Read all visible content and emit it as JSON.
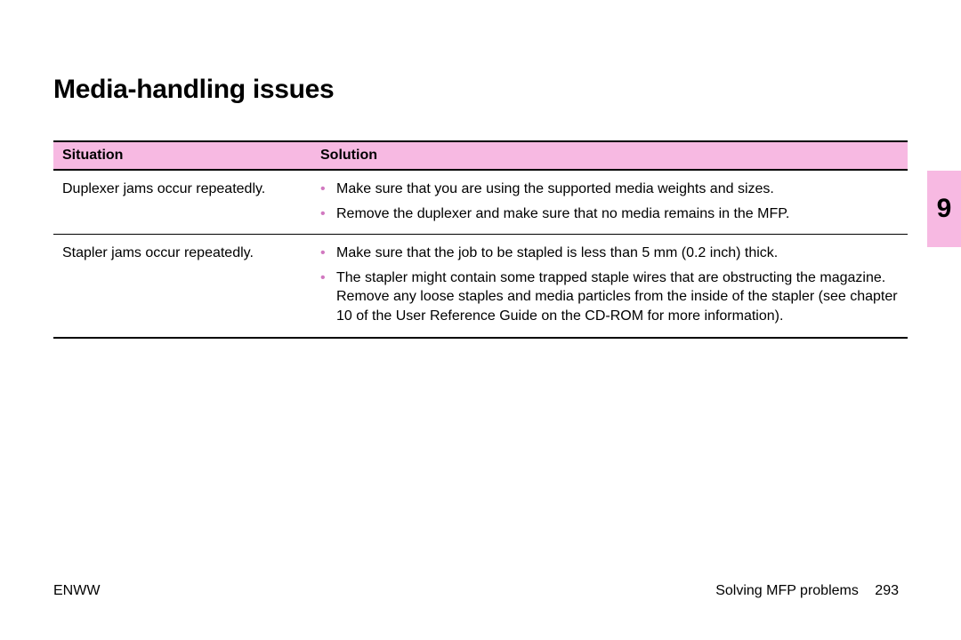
{
  "title": "Media-handling issues",
  "table": {
    "header": {
      "situation": "Situation",
      "solution": "Solution"
    },
    "header_bg": "#f7b9e2",
    "bullet_color": "#d178c0",
    "rows": [
      {
        "situation": "Duplexer jams occur repeatedly.",
        "solutions": [
          "Make sure that you are using the supported media weights and sizes.",
          "Remove the duplexer and make sure that no media remains in the MFP."
        ]
      },
      {
        "situation": "Stapler jams occur repeatedly.",
        "solutions": [
          "Make sure that the job to be stapled is less than 5 mm (0.2 inch) thick.",
          "The stapler might contain some trapped staple wires that are obstructing the magazine. Remove any loose staples and media particles from the inside of the stapler (see chapter 10 of the User Reference Guide on the CD-ROM for more information)."
        ]
      }
    ]
  },
  "side_tab": {
    "number": "9",
    "bg": "#f7b9e2"
  },
  "footer": {
    "left": "ENWW",
    "section": "Solving MFP problems",
    "page": "293"
  }
}
